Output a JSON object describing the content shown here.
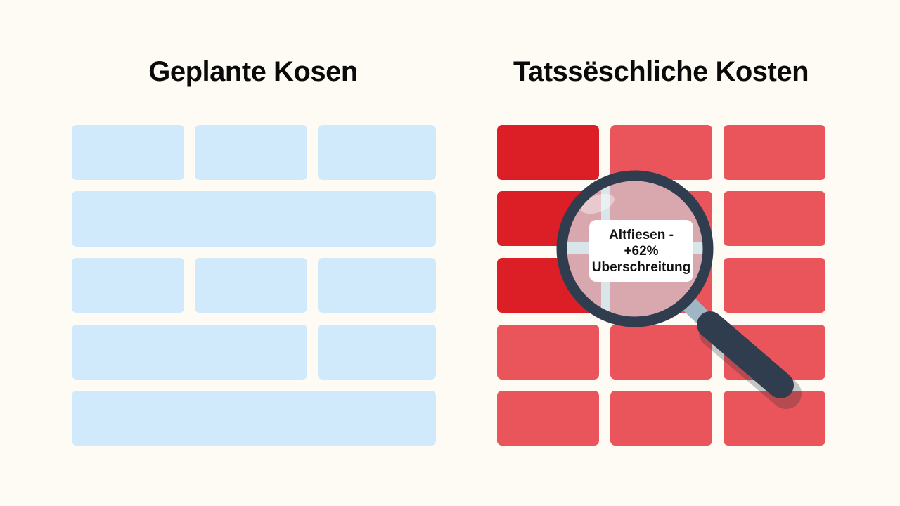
{
  "left_panel": {
    "title": "Geplante Kosen",
    "tile_color": "#d0eafb"
  },
  "right_panel": {
    "title": "Tatssëschliche Kosten",
    "tile_color": "#e9555a",
    "highlight_color": "#dc1e26"
  },
  "magnifier": {
    "icon": "magnifying-glass-icon",
    "label_lines": [
      "Altfiesen -",
      "+62%",
      "Uberschreitung"
    ]
  }
}
